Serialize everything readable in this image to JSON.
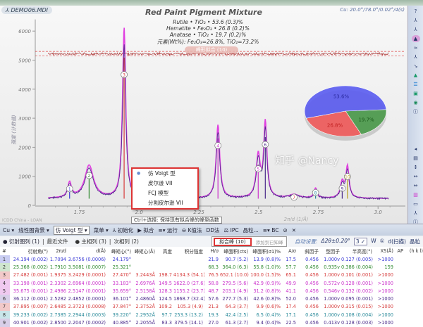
{
  "window": {
    "title": "DEMO06.MDI",
    "scan_info": "Cu: 20.0°/78.0°/0.02°/4(s)"
  },
  "chart": {
    "title": "Red Paint Pigment Mixture",
    "legend": [
      {
        "text": "Rutile • TiO₂ • 53.6 (0.3)%",
        "color": "#3b3bd6"
      },
      {
        "text": "Hematite • Fe₂O₃ • 26.8 (0.2)%",
        "color": "#d63b3b"
      },
      {
        "text": "Anatase • TiO₂ • 19.7 (0.2)%",
        "color": "#3a8a3a"
      },
      {
        "text": "元素(Wt%): Fe₂O₃=26.8%, TiO₂=73.2%",
        "color": "#aaaaaa"
      }
    ],
    "banner": "峰形拟合 (10)",
    "ylabel": "强度 (计数值)",
    "xlabel": "2π/d (1/Å)",
    "footer": "ICDD China - LOAN",
    "yticks": [
      0,
      1000,
      2000,
      3000,
      4000,
      5000,
      6000
    ],
    "xticks": [
      "1.75",
      "2.0",
      "2.25",
      "2.5",
      "2.75",
      "3.0"
    ],
    "ylim": [
      0,
      6500
    ],
    "xlim": [
      1.62,
      3.05
    ],
    "peaks": [
      {
        "n": 1,
        "x": 1.7094,
        "h": 500,
        "w": 0.009,
        "color": "#3b3bd6"
      },
      {
        "n": 2,
        "x": 1.791,
        "h": 1100,
        "w": 0.022,
        "color": "#2f8a2f"
      },
      {
        "n": 3,
        "x": 1.9375,
        "h": 5700,
        "w": 0.008,
        "color": "#d63b3b"
      },
      {
        "n": 4,
        "x": 2.3302,
        "h": 2450,
        "w": 0.009,
        "color": "#cc33cc"
      },
      {
        "n": 5,
        "x": 2.4986,
        "h": 1400,
        "w": 0.01,
        "color": "#cc33cc"
      },
      {
        "n": 6,
        "x": 2.5282,
        "h": 2500,
        "w": 0.008,
        "color": "#4a2a8a"
      },
      {
        "n": 7,
        "x": 2.6485,
        "h": 120,
        "w": 0.025,
        "color": "#d63b3b"
      },
      {
        "n": 8,
        "x": 2.7385,
        "h": 330,
        "w": 0.008,
        "color": "#2a8a9a"
      },
      {
        "n": 9,
        "x": 2.85,
        "h": 520,
        "w": 0.009,
        "color": "#4a2a8a"
      },
      {
        "n": 10,
        "x": 2.872,
        "h": 1050,
        "w": 0.008,
        "color": "#b8a020"
      }
    ],
    "baseline": 230,
    "pie": [
      {
        "label": "53.6%",
        "value": 53.6,
        "color": "#5a5cf0"
      },
      {
        "label": "26.8%",
        "value": 26.8,
        "color": "#f05a5a"
      },
      {
        "label": "19.7%",
        "value": 19.7,
        "color": "#4a9a4a"
      }
    ]
  },
  "toolbar": {
    "items": [
      "Cu ▾",
      "线性图背景 ▾",
      "仿 Voigt 型 ▾",
      "菜单 ▾",
      "⅄ 初始化",
      "▶ 拟合",
      "≡▾ 运行",
      "⊖ K值法",
      "DD法",
      "⚖ IPC",
      "晶粒...",
      "≡▾ BC",
      "⊘",
      "✕"
    ],
    "tooltip": "Ctrl+选择: 保持现有拟合峰的峰型函数"
  },
  "dropdown": {
    "options": [
      "仿 Voigt 型",
      "皮尔逊 VII",
      "FCJ 模型",
      "分割皮尔逊 VII"
    ],
    "selected": 0
  },
  "fit_popup": {
    "label": "拟合峰 (10)",
    "sub": "添加到已知峰"
  },
  "tabs": {
    "items": [
      "● 衍射图列 (1)",
      "最近文件",
      "● 主相列 (3)",
      "次相列 (2)"
    ],
    "right": [
      "自动设置:",
      "Δ2θ±0.20°",
      "3 ✓",
      "W",
      "①",
      "d(扫描)",
      "晶粒"
    ]
  },
  "table": {
    "headers": [
      "#",
      "衍射角(°)",
      "2π/d",
      "d(Å)",
      "峰矩心(°)",
      "峰矩心(Å)",
      "高度",
      "积分强度",
      "H/σ",
      "峰面积(cts)",
      "峰面积(σ1)%",
      "A/σ",
      "斜因子",
      "型因子",
      "半高宽(°)",
      "XS(Å)",
      "AP",
      "(h k l)",
      "..."
    ],
    "row_colors": [
      "#3b3bd6",
      "#2f8a2f",
      "#d63b3b",
      "#cc33cc",
      "#cc33cc",
      "#4a2a8a",
      "#d63b3b",
      "#2a8a9a",
      "#4a2a8a"
    ],
    "index_colors": [
      "#c9cdf2",
      "#cfe6cf",
      "#f2c9c9",
      "#f0c9f0",
      "#f0c9f0",
      "#d8cfe8",
      "#f2c9c9",
      "#c9e6ea",
      "#d8cfe8"
    ],
    "rows": [
      [
        "1",
        "24.194 (0.002)",
        "1.7094",
        "3.6756 (0.0006)",
        "24.179°",
        "",
        "",
        "",
        "21.9",
        "90.7 (5.2)",
        "13.9 (0.8)%",
        "17.5",
        "0.456",
        "1.000v",
        "0.127 (0.005)",
        ">1000",
        "",
        "",
        ""
      ],
      [
        "2",
        "25.368 (0.002)",
        "1.7910",
        "3.5081 (0.0007)",
        "25.321°",
        "",
        "",
        "",
        "68.3",
        "364.0 (6.3)",
        "55.8 (1.0)%",
        "57.7",
        "0.456",
        "0.935v",
        "0.386 (0.004)",
        "159",
        "",
        "",
        ""
      ],
      [
        "3",
        "27.482 (0.001)",
        "1.9375",
        "3.2429 (0.0001)",
        "27.470°",
        "3.2443Å",
        "198.7",
        "4134.3 (54.1)",
        "76.5",
        "652.1 (10.0)",
        "100.0 (1.5)%",
        "65.1",
        "0.456",
        "1.000v",
        "0.101 (0.001)",
        ">1000",
        "",
        "",
        ""
      ],
      [
        "4",
        "33.198 (0.001)",
        "2.3302",
        "2.6964 (0.0001)",
        "33.183°",
        "2.6976Å",
        "149.5",
        "1622.0 (27.6)",
        "58.8",
        "279.5 (5.6)",
        "42.9 (0.9)%",
        "49.9",
        "0.456",
        "0.572v",
        "0.128 (0.001)",
        ">1000",
        "",
        "",
        ""
      ],
      [
        "5",
        "35.675 (0.001)",
        "2.4986",
        "2.5147 (0.0001)",
        "35.659°",
        "2.5158Å",
        "128.3",
        "1155.2 (23.7)",
        "48.7",
        "203.1 (4.9)",
        "31.2 (0.8)%",
        "41.1",
        "0.456",
        "0.546v",
        "0.132 (0.002)",
        ">1000",
        "",
        "",
        ""
      ],
      [
        "6",
        "36.112 (0.001)",
        "2.5282",
        "2.4852 (0.0001)",
        "36.101°",
        "2.4860Å",
        "124.5",
        "1868.7 (32.4)",
        "57.6",
        "277.7 (5.3)",
        "42.6 (0.8)%",
        "52.0",
        "0.456",
        "1.000v",
        "0.095 (0.001)",
        ">1000",
        "",
        "",
        ""
      ],
      [
        "7",
        "37.895 (0.007)",
        "2.6485",
        "2.3723 (0.0008)",
        "37.847°",
        "2.3752Å",
        "109.2",
        "105.3 (4.9)",
        "21.3",
        "64.3 (3.7)",
        "9.9 (0.6)%",
        "17.4",
        "0.456",
        "1.000v",
        "0.315 (0.015)",
        ">1000",
        "",
        "",
        ""
      ],
      [
        "8",
        "39.233 (0.002)",
        "2.7385",
        "2.2944 (0.0003)",
        "39.220°",
        "2.2952Å",
        "97.7",
        "253.3 (13.2)",
        "19.3",
        "42.4 (2.5)",
        "6.5 (0.4)%",
        "17.1",
        "0.456",
        "1.000v",
        "0.108 (0.004)",
        ">1000",
        "",
        "",
        ""
      ],
      [
        "9",
        "40.901 (0.002)",
        "2.8500",
        "2.2047 (0.0002)",
        "40.885°",
        "2.2055Å",
        "83.3",
        "379.5 (14.1)",
        "27.0",
        "61.3 (2.7)",
        "9.4 (0.4)%",
        "22.5",
        "0.456",
        "0.413v",
        "0.128 (0.003)",
        ">1000",
        "",
        "",
        ""
      ]
    ]
  },
  "watermark": "知乎 @Nancy"
}
